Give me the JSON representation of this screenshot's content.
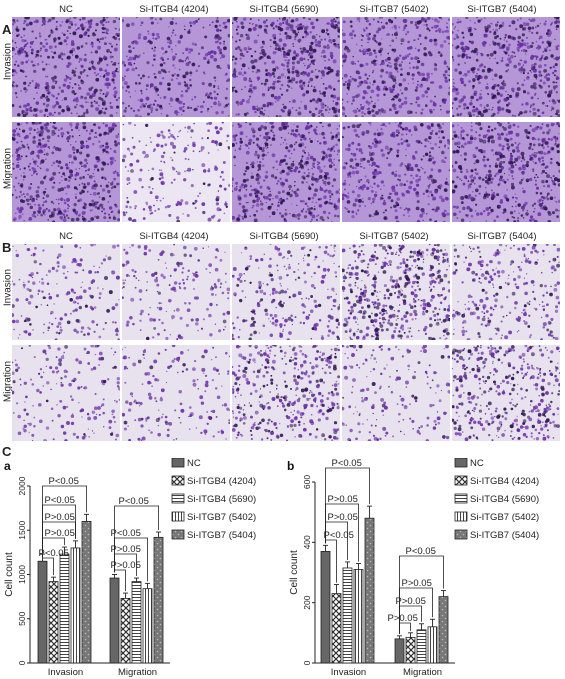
{
  "panels": {
    "A": {
      "label": "A",
      "columns": [
        "NC",
        "Si-ITGB4 (4204)",
        "Si-ITGB4 (5690)",
        "Si-ITGB7 (5402)",
        "Si-ITGB7 (5404)"
      ],
      "rows": [
        "Invasion",
        "Migration"
      ],
      "density": [
        [
          0.85,
          0.55,
          0.88,
          0.72,
          0.85
        ],
        [
          0.9,
          0.28,
          0.85,
          0.65,
          0.85
        ]
      ]
    },
    "B": {
      "label": "B",
      "columns": [
        "NC",
        "Si-ITGB4 (4204)",
        "Si-ITGB4 (5690)",
        "Si-ITGB7 (5402)",
        "Si-ITGB7 (5404)"
      ],
      "rows": [
        "Invasion",
        "Migration"
      ],
      "density": [
        [
          0.25,
          0.22,
          0.35,
          0.8,
          0.4
        ],
        [
          0.22,
          0.2,
          0.6,
          0.22,
          0.65
        ]
      ]
    },
    "C": {
      "label": "C"
    }
  },
  "colors": {
    "stain": "#6a2fa8",
    "stain_dark": "#2c1550",
    "bg_A": "#b596d6",
    "bg_B": "#e8e2ee",
    "bar": "#555555"
  },
  "chart_data": [
    {
      "type": "bar",
      "panel_label": "a",
      "categories": [
        "Invasion",
        "Migration"
      ],
      "series": [
        {
          "name": "NC",
          "values": [
            1150,
            960
          ],
          "errors": [
            80,
            40
          ]
        },
        {
          "name": "Si-ITGB4 (4204)",
          "values": [
            920,
            730
          ],
          "errors": [
            50,
            60
          ]
        },
        {
          "name": "Si-ITGB4 (5690)",
          "values": [
            1230,
            920
          ],
          "errors": [
            80,
            40
          ]
        },
        {
          "name": "Si-ITGB7 (5402)",
          "values": [
            1300,
            840
          ],
          "errors": [
            80,
            60
          ]
        },
        {
          "name": "Si-ITGB7 (5404)",
          "values": [
            1600,
            1420
          ],
          "errors": [
            80,
            60
          ]
        }
      ],
      "patterns": [
        "solid",
        "cross",
        "hline",
        "vline",
        "dot"
      ],
      "ylabel": "Cell count",
      "ylim": [
        0,
        2000
      ],
      "yticks": [
        0,
        500,
        1000,
        1500,
        2000
      ],
      "annotations": [
        "P<0.05",
        "P>0.05",
        "P>0.05",
        "P<0.05",
        "P<0.05",
        "P>0.05",
        "P>0.05",
        "P<0.05",
        "P<0.05"
      ]
    },
    {
      "type": "bar",
      "panel_label": "b",
      "categories": [
        "Invasion",
        "Migration"
      ],
      "series": [
        {
          "name": "NC",
          "values": [
            370,
            80
          ],
          "errors": [
            20,
            10
          ]
        },
        {
          "name": "Si-ITGB4 (4204)",
          "values": [
            230,
            85
          ],
          "errors": [
            30,
            15
          ]
        },
        {
          "name": "Si-ITGB4 (5690)",
          "values": [
            315,
            110
          ],
          "errors": [
            20,
            20
          ]
        },
        {
          "name": "Si-ITGB7 (5402)",
          "values": [
            310,
            120
          ],
          "errors": [
            20,
            25
          ]
        },
        {
          "name": "Si-ITGB7 (5404)",
          "values": [
            480,
            220
          ],
          "errors": [
            40,
            20
          ]
        }
      ],
      "patterns": [
        "solid",
        "cross",
        "hline",
        "vline",
        "dot"
      ],
      "ylabel": "Cell count",
      "ylim": [
        0,
        600
      ],
      "yticks": [
        0,
        200,
        400,
        600
      ],
      "annotations": [
        "P<0.05",
        "P>0.05",
        "P>0.05",
        "P<0.05",
        "P<0.05",
        "P>0.05",
        "P>0.05",
        "P>0.05"
      ]
    }
  ]
}
